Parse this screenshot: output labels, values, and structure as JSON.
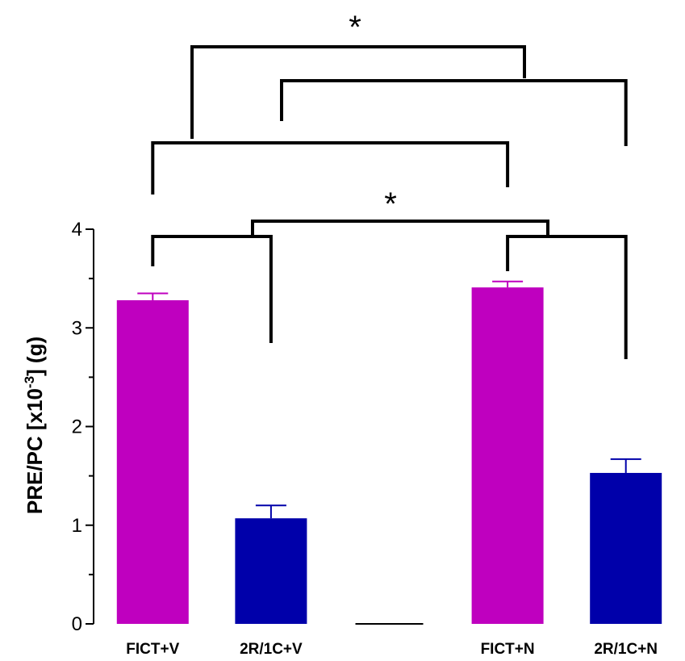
{
  "chart_data": {
    "type": "bar",
    "categories": [
      "FICT+V",
      "2R/1C+V",
      "",
      "FICT+N",
      "2R/1C+N"
    ],
    "values": [
      3.28,
      1.07,
      0,
      3.41,
      1.53
    ],
    "errors": [
      0.07,
      0.13,
      0,
      0.06,
      0.14
    ],
    "colors": [
      "#bf00bf",
      "#0000aa",
      "#ffffff",
      "#bf00bf",
      "#0000aa"
    ],
    "ylabel": {
      "main": "PRE/PC [x10",
      "sup": "-3",
      "tail": "] (g)"
    },
    "ylim": [
      0,
      4
    ],
    "yticks": [
      "0",
      "1",
      "2",
      "3",
      "4"
    ],
    "grid": false,
    "annotations": {
      "significance_marker": "*",
      "markers": [
        "*",
        "*"
      ]
    }
  }
}
